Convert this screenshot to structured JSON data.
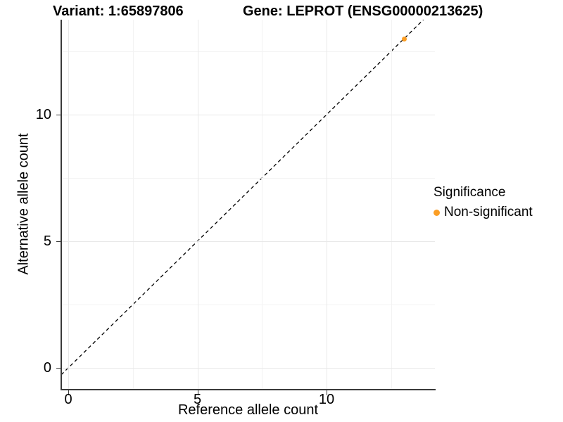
{
  "header": {
    "variant_title": "Variant: 1:65897806",
    "gene_title": "Gene: LEPROT (ENSG00000213625)"
  },
  "chart_data": {
    "type": "scatter",
    "title_left": "Variant: 1:65897806",
    "title_right": "Gene: LEPROT (ENSG00000213625)",
    "xlabel": "Reference allele count",
    "ylabel": "Alternative allele count",
    "x_ticks": [
      0,
      5,
      10
    ],
    "y_ticks": [
      0,
      5,
      10
    ],
    "x_minor_gridlines": [
      2.5,
      7.5,
      12.5
    ],
    "y_minor_gridlines": [
      2.5,
      7.5,
      12.5
    ],
    "xlim": [
      -0.3,
      14.2
    ],
    "ylim": [
      -0.85,
      13.75
    ],
    "grid": true,
    "points": [
      {
        "x": 13,
        "y": 13,
        "series": "Non-significant",
        "color": "#FB9E25"
      }
    ],
    "reference_line": {
      "kind": "identity",
      "slope": 1,
      "intercept": 0,
      "style": "dashed",
      "color": "#000000"
    },
    "legend": {
      "position": "right",
      "title": "Significance",
      "items": [
        {
          "label": "Non-significant",
          "color": "#FB9E25"
        }
      ]
    },
    "colors": {
      "major_grid": "#e8e8e8",
      "minor_grid": "#f3f3f3",
      "axis_line": "#3a3a3a",
      "text": "#000000"
    }
  }
}
